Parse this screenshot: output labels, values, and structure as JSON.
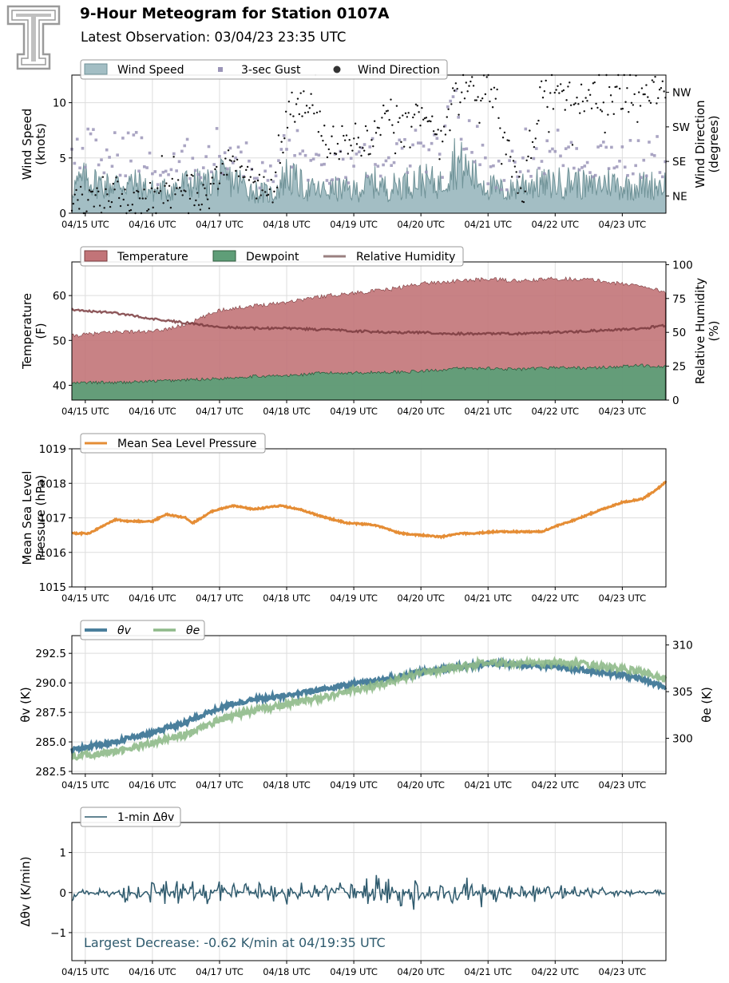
{
  "header": {
    "title": "9-Hour Meteogram for Station 0107A",
    "subtitle": "Latest Observation: 03/04/23 23:35 UTC"
  },
  "colors": {
    "wind_fill": "#a3bec4",
    "wind_edge": "#6f9297",
    "gust": "#9b95b8",
    "direction": "#111111",
    "temp_fill": "#c27478",
    "temp_edge": "#7a3b3e",
    "dew_fill": "#5f9e78",
    "dew_edge": "#2f5c3e",
    "rh": "#7a3b3e",
    "rh_legend": "#9a8080",
    "pressure": "#e58d35",
    "theta_v": "#4a7f9c",
    "theta_e": "#8fba8a",
    "delta": "#2f5b6e",
    "annotation": "#2f5b6e",
    "logo": "#9a9a9a"
  },
  "chart_data": [
    {
      "type": "area",
      "id": "wind",
      "x_ticks": [
        "04/15 UTC",
        "04/16 UTC",
        "04/17 UTC",
        "04/18 UTC",
        "04/19 UTC",
        "04/20 UTC",
        "04/21 UTC",
        "04/22 UTC",
        "04/23 UTC"
      ],
      "xlim": [
        14.8,
        23.65
      ],
      "ylabel": "Wind Speed\n(knots)",
      "ylim": [
        0,
        12.5
      ],
      "y_ticks": [
        0,
        5,
        10
      ],
      "ylabel_right": "Wind Direction\n(degrees)",
      "y2lim": [
        0,
        360
      ],
      "y2_ticks": [
        {
          "label": "NE",
          "value": 45
        },
        {
          "label": "SE",
          "value": 135
        },
        {
          "label": "SW",
          "value": 225
        },
        {
          "label": "NW",
          "value": 315
        }
      ],
      "legend": [
        "Wind Speed",
        "3-sec Gust",
        "Wind Direction"
      ],
      "grid": true,
      "series": [
        {
          "name": "Wind Speed",
          "x": [
            14.8,
            15.0,
            15.3,
            15.5,
            15.8,
            16.0,
            16.3,
            16.5,
            16.8,
            17.0,
            17.3,
            17.5,
            17.8,
            18.0,
            18.3,
            18.5,
            18.8,
            19.0,
            19.3,
            19.5,
            19.8,
            20.0,
            20.3,
            20.5,
            20.8,
            21.0,
            21.3,
            21.5,
            21.8,
            22.0,
            22.3,
            22.5,
            22.8,
            23.0,
            23.3,
            23.6
          ],
          "values": [
            2.3,
            3.1,
            2.5,
            2.7,
            2.6,
            2.0,
            2.2,
            2.7,
            2.6,
            3.2,
            2.8,
            2.0,
            1.7,
            3.5,
            2.2,
            2.0,
            2.2,
            2.0,
            2.8,
            2.2,
            2.8,
            3.0,
            2.6,
            4.8,
            3.3,
            2.4,
            1.9,
            2.7,
            2.6,
            2.7,
            2.9,
            2.3,
            2.9,
            2.4,
            2.5,
            2.6
          ]
        },
        {
          "name": "3-sec Gust",
          "x": [
            14.8,
            15.0,
            15.3,
            15.5,
            15.8,
            16.0,
            16.3,
            16.5,
            16.8,
            17.0,
            17.3,
            17.5,
            17.8,
            18.0,
            18.3,
            18.5,
            18.8,
            19.0,
            19.3,
            19.5,
            19.8,
            20.0,
            20.3,
            20.5,
            20.8,
            21.0,
            21.3,
            21.5,
            21.8,
            22.0,
            22.3,
            22.5,
            22.8,
            23.0,
            23.3,
            23.6
          ],
          "values": [
            5.3,
            6.4,
            5.2,
            6.0,
            6.2,
            3.9,
            4.3,
            5.2,
            5.4,
            6.1,
            6.2,
            4.1,
            3.4,
            6.8,
            5.2,
            4.0,
            4.4,
            3.9,
            6.0,
            4.5,
            6.0,
            5.8,
            5.4,
            9.6,
            6.7,
            4.3,
            3.6,
            6.2,
            5.4,
            6.1,
            6.3,
            5.1,
            6.2,
            5.3,
            5.1,
            5.6
          ]
        },
        {
          "name": "Wind Direction",
          "x": [
            14.8,
            15.0,
            15.3,
            15.5,
            15.8,
            16.0,
            16.3,
            16.5,
            16.8,
            17.0,
            17.3,
            17.5,
            17.8,
            18.0,
            18.3,
            18.5,
            18.8,
            19.0,
            19.3,
            19.5,
            19.8,
            20.0,
            20.3,
            20.5,
            20.8,
            21.0,
            21.3,
            21.5,
            21.8,
            22.0,
            22.3,
            22.5,
            22.8,
            23.0,
            23.3,
            23.6
          ],
          "values": [
            40,
            30,
            35,
            60,
            20,
            45,
            55,
            80,
            35,
            110,
            150,
            80,
            40,
            250,
            290,
            230,
            160,
            170,
            200,
            280,
            260,
            240,
            200,
            330,
            320,
            340,
            200,
            30,
            320,
            300,
            290,
            310,
            290,
            300,
            310,
            320
          ]
        }
      ]
    },
    {
      "type": "area",
      "id": "thermo",
      "x_ticks": [
        "04/15 UTC",
        "04/16 UTC",
        "04/17 UTC",
        "04/18 UTC",
        "04/19 UTC",
        "04/20 UTC",
        "04/21 UTC",
        "04/22 UTC",
        "04/23 UTC"
      ],
      "xlim": [
        14.8,
        23.65
      ],
      "ylabel": "Temperature\n(F)",
      "ylim": [
        36.7,
        67.5
      ],
      "y_ticks": [
        40,
        50,
        60
      ],
      "ylabel_right": "Relative Humidity\n(%)",
      "y2lim": [
        0,
        102
      ],
      "y2_ticks": [
        0,
        25,
        50,
        75,
        100
      ],
      "legend": [
        "Temperature",
        "Dewpoint",
        "Relative Humidity"
      ],
      "grid": true,
      "series": [
        {
          "name": "Temperature",
          "x": [
            14.8,
            15.0,
            15.5,
            16.0,
            16.5,
            17.0,
            17.5,
            18.0,
            18.5,
            19.0,
            19.5,
            20.0,
            20.5,
            21.0,
            21.5,
            22.0,
            22.5,
            23.0,
            23.3,
            23.65
          ],
          "values": [
            51.0,
            51.3,
            52.0,
            51.9,
            53.5,
            56.8,
            57.7,
            58.6,
            59.8,
            60.6,
            61.3,
            62.7,
            63.2,
            63.7,
            63.2,
            63.8,
            63.6,
            62.6,
            62.2,
            60.7
          ]
        },
        {
          "name": "Dewpoint",
          "x": [
            14.8,
            15.0,
            15.5,
            16.0,
            16.5,
            17.0,
            17.5,
            18.0,
            18.5,
            19.0,
            19.5,
            20.0,
            20.5,
            21.0,
            21.5,
            22.0,
            22.5,
            23.0,
            23.3,
            23.65
          ],
          "values": [
            40.4,
            40.6,
            40.6,
            40.9,
            41.2,
            41.5,
            42.0,
            42.1,
            42.7,
            42.8,
            42.9,
            43.1,
            43.7,
            43.8,
            43.5,
            44.0,
            43.8,
            44.2,
            44.4,
            44.2
          ]
        },
        {
          "name": "Relative Humidity",
          "x": [
            14.8,
            15.0,
            15.5,
            16.0,
            16.5,
            17.0,
            17.5,
            18.0,
            18.5,
            19.0,
            19.5,
            20.0,
            20.5,
            21.0,
            21.5,
            22.0,
            22.5,
            23.0,
            23.3,
            23.65
          ],
          "values": [
            67,
            66,
            64,
            60,
            57,
            54,
            53,
            53,
            52,
            51,
            50,
            50,
            49,
            49,
            49,
            50,
            51,
            52,
            53,
            55
          ]
        }
      ]
    },
    {
      "type": "line",
      "id": "pressure",
      "x_ticks": [
        "04/15 UTC",
        "04/16 UTC",
        "04/17 UTC",
        "04/18 UTC",
        "04/19 UTC",
        "04/20 UTC",
        "04/21 UTC",
        "04/22 UTC",
        "04/23 UTC"
      ],
      "xlim": [
        14.8,
        23.65
      ],
      "ylabel": "Mean Sea Level\nPressure (hPa)",
      "ylim": [
        1015,
        1019
      ],
      "y_ticks": [
        1015,
        1016,
        1017,
        1018,
        1019
      ],
      "legend": [
        "Mean Sea Level Pressure"
      ],
      "grid": true,
      "series": [
        {
          "name": "Mean Sea Level Pressure",
          "x": [
            14.8,
            15.05,
            15.25,
            15.45,
            15.6,
            16.0,
            16.2,
            16.5,
            16.6,
            16.9,
            17.2,
            17.5,
            17.9,
            18.2,
            18.5,
            18.9,
            19.3,
            19.7,
            20.0,
            20.3,
            20.6,
            20.8,
            21.1,
            21.5,
            21.8,
            22.0,
            22.3,
            22.7,
            23.0,
            23.3,
            23.5,
            23.65
          ],
          "values": [
            1016.55,
            1016.55,
            1016.75,
            1016.95,
            1016.9,
            1016.9,
            1017.1,
            1017.0,
            1016.85,
            1017.2,
            1017.35,
            1017.25,
            1017.35,
            1017.25,
            1017.05,
            1016.85,
            1016.8,
            1016.55,
            1016.5,
            1016.45,
            1016.55,
            1016.55,
            1016.6,
            1016.6,
            1016.6,
            1016.75,
            1016.95,
            1017.25,
            1017.45,
            1017.55,
            1017.8,
            1018.05
          ]
        }
      ]
    },
    {
      "type": "line",
      "id": "theta",
      "x_ticks": [
        "04/15 UTC",
        "04/16 UTC",
        "04/17 UTC",
        "04/18 UTC",
        "04/19 UTC",
        "04/20 UTC",
        "04/21 UTC",
        "04/22 UTC",
        "04/23 UTC"
      ],
      "xlim": [
        14.8,
        23.65
      ],
      "ylabel": "θv (K)",
      "ylim": [
        282.3,
        294
      ],
      "y_ticks": [
        282.5,
        285.0,
        287.5,
        290.0,
        292.5
      ],
      "y_tick_labels": [
        "282.5",
        "285.0",
        "287.5",
        "290.0",
        "292.5"
      ],
      "ylabel_right": "θe (K)",
      "y2lim": [
        296.2,
        311.0
      ],
      "y2_ticks": [
        300,
        305,
        310
      ],
      "legend": [
        "θv",
        "θe"
      ],
      "grid": true,
      "series": [
        {
          "name": "θv",
          "x": [
            14.8,
            15.0,
            15.5,
            16.0,
            16.5,
            17.0,
            17.5,
            18.0,
            18.5,
            19.0,
            19.5,
            20.0,
            20.5,
            21.0,
            21.5,
            22.0,
            22.5,
            23.0,
            23.3,
            23.65
          ],
          "values": [
            284.3,
            284.5,
            285.1,
            285.8,
            286.7,
            287.9,
            288.6,
            288.9,
            289.4,
            289.9,
            290.3,
            290.9,
            291.3,
            291.6,
            291.5,
            291.4,
            291.0,
            290.7,
            290.3,
            289.6
          ]
        },
        {
          "name": "θe",
          "x": [
            14.8,
            15.0,
            15.5,
            16.0,
            16.5,
            17.0,
            17.5,
            18.0,
            18.5,
            19.0,
            19.5,
            20.0,
            20.5,
            21.0,
            21.5,
            22.0,
            22.5,
            23.0,
            23.3,
            23.65
          ],
          "values": [
            298.0,
            298.2,
            298.6,
            299.5,
            300.4,
            302.0,
            303.0,
            303.6,
            304.3,
            305.2,
            305.9,
            307.0,
            307.6,
            308.1,
            308.0,
            308.1,
            307.9,
            307.4,
            307.1,
            306.4
          ]
        }
      ]
    },
    {
      "type": "line",
      "id": "delta",
      "x_ticks": [
        "04/15 UTC",
        "04/16 UTC",
        "04/17 UTC",
        "04/18 UTC",
        "04/19 UTC",
        "04/20 UTC",
        "04/21 UTC",
        "04/22 UTC",
        "04/23 UTC"
      ],
      "xlim": [
        14.8,
        23.65
      ],
      "ylabel": "Δθv (K/min)",
      "ylim": [
        -1.7,
        1.75
      ],
      "y_ticks": [
        -1,
        0,
        1
      ],
      "y_tick_labels": [
        "−1",
        "0",
        "1"
      ],
      "legend": [
        "1-min Δθv"
      ],
      "annotation": "Largest Decrease: -0.62 K/min at 04/19:35 UTC",
      "grid": true,
      "series": [
        {
          "name": "1-min Δθv",
          "x": [
            14.8,
            15.0,
            15.2,
            15.4,
            15.6,
            15.8,
            16.0,
            16.2,
            16.4,
            16.6,
            16.8,
            17.0,
            17.2,
            17.4,
            17.6,
            17.8,
            18.0,
            18.2,
            18.4,
            18.6,
            18.8,
            19.0,
            19.2,
            19.35,
            19.5,
            19.7,
            19.9,
            20.1,
            20.3,
            20.5,
            20.7,
            20.9,
            21.1,
            21.3,
            21.5,
            21.7,
            21.9,
            22.1,
            22.3,
            22.5,
            22.7,
            22.9,
            23.1,
            23.3,
            23.5,
            23.65
          ],
          "values": [
            -0.25,
            0.18,
            -0.2,
            0.22,
            -0.35,
            0.3,
            -0.4,
            0.42,
            -0.5,
            0.35,
            -0.45,
            0.4,
            -0.3,
            0.35,
            -0.35,
            0.3,
            -0.4,
            0.38,
            -0.45,
            0.4,
            -0.35,
            0.5,
            -0.62,
            0.75,
            -0.5,
            0.45,
            -0.55,
            0.4,
            -0.45,
            0.5,
            -0.55,
            0.45,
            -0.4,
            0.38,
            -0.35,
            0.3,
            -0.3,
            0.25,
            -0.25,
            0.22,
            -0.18,
            0.15,
            -0.12,
            0.1,
            -0.08,
            -0.05
          ]
        }
      ]
    }
  ]
}
